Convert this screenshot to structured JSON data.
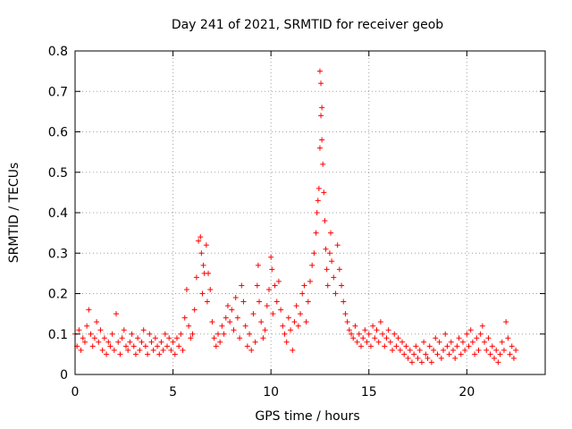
{
  "chart_data": {
    "type": "scatter",
    "title": "Day 241 of 2021, SRMTID for receiver geob",
    "xlabel": "GPS time / hours",
    "ylabel": "SRMTID / TECUs",
    "xlim": [
      0,
      24
    ],
    "ylim": [
      0,
      0.8
    ],
    "x_ticks": [
      0,
      5,
      10,
      15,
      20
    ],
    "x_tick_labels": [
      "0",
      "5",
      "10",
      "15",
      "20"
    ],
    "y_ticks": [
      0,
      0.1,
      0.2,
      0.3,
      0.4,
      0.5,
      0.6,
      0.7,
      0.8
    ],
    "y_tick_labels": [
      "0",
      "0.1",
      "0.2",
      "0.3",
      "0.4",
      "0.5",
      "0.6",
      "0.7",
      "0.8"
    ],
    "grid": true,
    "marker": "plus",
    "color": "#ff0000",
    "series": [
      {
        "name": "SRMTID",
        "points": [
          [
            0.0,
            0.1
          ],
          [
            0.1,
            0.07
          ],
          [
            0.2,
            0.11
          ],
          [
            0.3,
            0.06
          ],
          [
            0.4,
            0.09
          ],
          [
            0.5,
            0.08
          ],
          [
            0.6,
            0.12
          ],
          [
            0.7,
            0.16
          ],
          [
            0.8,
            0.1
          ],
          [
            0.9,
            0.07
          ],
          [
            1.0,
            0.09
          ],
          [
            1.1,
            0.13
          ],
          [
            1.2,
            0.08
          ],
          [
            1.3,
            0.11
          ],
          [
            1.4,
            0.06
          ],
          [
            1.5,
            0.09
          ],
          [
            1.6,
            0.05
          ],
          [
            1.7,
            0.08
          ],
          [
            1.8,
            0.07
          ],
          [
            1.9,
            0.1
          ],
          [
            2.0,
            0.06
          ],
          [
            2.1,
            0.15
          ],
          [
            2.2,
            0.08
          ],
          [
            2.3,
            0.05
          ],
          [
            2.4,
            0.09
          ],
          [
            2.5,
            0.11
          ],
          [
            2.6,
            0.07
          ],
          [
            2.7,
            0.06
          ],
          [
            2.8,
            0.08
          ],
          [
            2.9,
            0.1
          ],
          [
            3.0,
            0.07
          ],
          [
            3.1,
            0.05
          ],
          [
            3.2,
            0.09
          ],
          [
            3.3,
            0.06
          ],
          [
            3.4,
            0.08
          ],
          [
            3.5,
            0.11
          ],
          [
            3.6,
            0.07
          ],
          [
            3.7,
            0.05
          ],
          [
            3.8,
            0.1
          ],
          [
            3.9,
            0.08
          ],
          [
            4.0,
            0.06
          ],
          [
            4.1,
            0.09
          ],
          [
            4.2,
            0.07
          ],
          [
            4.3,
            0.05
          ],
          [
            4.4,
            0.08
          ],
          [
            4.5,
            0.06
          ],
          [
            4.6,
            0.1
          ],
          [
            4.7,
            0.07
          ],
          [
            4.8,
            0.09
          ],
          [
            4.9,
            0.06
          ],
          [
            5.0,
            0.08
          ],
          [
            5.1,
            0.05
          ],
          [
            5.2,
            0.09
          ],
          [
            5.3,
            0.07
          ],
          [
            5.4,
            0.1
          ],
          [
            5.5,
            0.06
          ],
          [
            5.6,
            0.14
          ],
          [
            5.7,
            0.21
          ],
          [
            5.8,
            0.12
          ],
          [
            5.9,
            0.09
          ],
          [
            6.0,
            0.1
          ],
          [
            6.1,
            0.16
          ],
          [
            6.2,
            0.24
          ],
          [
            6.3,
            0.33
          ],
          [
            6.4,
            0.34
          ],
          [
            6.45,
            0.3
          ],
          [
            6.5,
            0.2
          ],
          [
            6.55,
            0.27
          ],
          [
            6.6,
            0.25
          ],
          [
            6.7,
            0.32
          ],
          [
            6.75,
            0.18
          ],
          [
            6.8,
            0.25
          ],
          [
            6.9,
            0.21
          ],
          [
            7.0,
            0.13
          ],
          [
            7.1,
            0.09
          ],
          [
            7.2,
            0.07
          ],
          [
            7.3,
            0.1
          ],
          [
            7.4,
            0.08
          ],
          [
            7.5,
            0.12
          ],
          [
            7.6,
            0.1
          ],
          [
            7.7,
            0.14
          ],
          [
            7.8,
            0.17
          ],
          [
            7.9,
            0.13
          ],
          [
            8.0,
            0.16
          ],
          [
            8.1,
            0.11
          ],
          [
            8.2,
            0.19
          ],
          [
            8.3,
            0.14
          ],
          [
            8.4,
            0.09
          ],
          [
            8.5,
            0.22
          ],
          [
            8.6,
            0.18
          ],
          [
            8.7,
            0.12
          ],
          [
            8.8,
            0.07
          ],
          [
            8.9,
            0.1
          ],
          [
            9.0,
            0.06
          ],
          [
            9.1,
            0.15
          ],
          [
            9.2,
            0.08
          ],
          [
            9.3,
            0.22
          ],
          [
            9.35,
            0.27
          ],
          [
            9.4,
            0.18
          ],
          [
            9.5,
            0.13
          ],
          [
            9.6,
            0.09
          ],
          [
            9.7,
            0.11
          ],
          [
            9.8,
            0.17
          ],
          [
            9.9,
            0.21
          ],
          [
            10.0,
            0.29
          ],
          [
            10.05,
            0.26
          ],
          [
            10.1,
            0.15
          ],
          [
            10.2,
            0.22
          ],
          [
            10.3,
            0.18
          ],
          [
            10.4,
            0.23
          ],
          [
            10.5,
            0.16
          ],
          [
            10.6,
            0.12
          ],
          [
            10.7,
            0.1
          ],
          [
            10.8,
            0.08
          ],
          [
            10.9,
            0.14
          ],
          [
            11.0,
            0.11
          ],
          [
            11.1,
            0.06
          ],
          [
            11.2,
            0.13
          ],
          [
            11.3,
            0.17
          ],
          [
            11.4,
            0.12
          ],
          [
            11.5,
            0.15
          ],
          [
            11.6,
            0.2
          ],
          [
            11.7,
            0.22
          ],
          [
            11.8,
            0.13
          ],
          [
            11.9,
            0.18
          ],
          [
            12.0,
            0.23
          ],
          [
            12.1,
            0.27
          ],
          [
            12.2,
            0.3
          ],
          [
            12.3,
            0.35
          ],
          [
            12.35,
            0.4
          ],
          [
            12.4,
            0.43
          ],
          [
            12.45,
            0.46
          ],
          [
            12.5,
            0.56
          ],
          [
            12.55,
            0.64
          ],
          [
            12.6,
            0.58
          ],
          [
            12.65,
            0.52
          ],
          [
            12.5,
            0.75
          ],
          [
            12.55,
            0.72
          ],
          [
            12.6,
            0.66
          ],
          [
            12.7,
            0.45
          ],
          [
            12.75,
            0.38
          ],
          [
            12.8,
            0.31
          ],
          [
            12.85,
            0.26
          ],
          [
            12.9,
            0.22
          ],
          [
            13.0,
            0.3
          ],
          [
            13.05,
            0.35
          ],
          [
            13.1,
            0.28
          ],
          [
            13.2,
            0.24
          ],
          [
            13.3,
            0.2
          ],
          [
            13.4,
            0.32
          ],
          [
            13.5,
            0.26
          ],
          [
            13.6,
            0.22
          ],
          [
            13.7,
            0.18
          ],
          [
            13.8,
            0.15
          ],
          [
            13.9,
            0.13
          ],
          [
            14.0,
            0.11
          ],
          [
            14.1,
            0.1
          ],
          [
            14.2,
            0.09
          ],
          [
            14.3,
            0.12
          ],
          [
            14.4,
            0.08
          ],
          [
            14.5,
            0.1
          ],
          [
            14.6,
            0.07
          ],
          [
            14.7,
            0.09
          ],
          [
            14.8,
            0.11
          ],
          [
            14.9,
            0.08
          ],
          [
            15.0,
            0.1
          ],
          [
            15.1,
            0.07
          ],
          [
            15.2,
            0.12
          ],
          [
            15.3,
            0.09
          ],
          [
            15.4,
            0.11
          ],
          [
            15.5,
            0.08
          ],
          [
            15.6,
            0.13
          ],
          [
            15.7,
            0.1
          ],
          [
            15.8,
            0.07
          ],
          [
            15.9,
            0.09
          ],
          [
            16.0,
            0.11
          ],
          [
            16.1,
            0.08
          ],
          [
            16.2,
            0.06
          ],
          [
            16.3,
            0.1
          ],
          [
            16.4,
            0.07
          ],
          [
            16.5,
            0.09
          ],
          [
            16.6,
            0.06
          ],
          [
            16.7,
            0.08
          ],
          [
            16.8,
            0.05
          ],
          [
            16.9,
            0.07
          ],
          [
            17.0,
            0.04
          ],
          [
            17.1,
            0.06
          ],
          [
            17.2,
            0.03
          ],
          [
            17.3,
            0.05
          ],
          [
            17.4,
            0.07
          ],
          [
            17.5,
            0.04
          ],
          [
            17.6,
            0.06
          ],
          [
            17.7,
            0.03
          ],
          [
            17.8,
            0.08
          ],
          [
            17.9,
            0.05
          ],
          [
            18.0,
            0.04
          ],
          [
            18.1,
            0.07
          ],
          [
            18.2,
            0.03
          ],
          [
            18.3,
            0.06
          ],
          [
            18.4,
            0.09
          ],
          [
            18.5,
            0.05
          ],
          [
            18.6,
            0.08
          ],
          [
            18.7,
            0.04
          ],
          [
            18.8,
            0.06
          ],
          [
            18.9,
            0.1
          ],
          [
            19.0,
            0.07
          ],
          [
            19.1,
            0.05
          ],
          [
            19.2,
            0.08
          ],
          [
            19.3,
            0.06
          ],
          [
            19.4,
            0.04
          ],
          [
            19.5,
            0.07
          ],
          [
            19.6,
            0.09
          ],
          [
            19.7,
            0.05
          ],
          [
            19.8,
            0.08
          ],
          [
            19.9,
            0.06
          ],
          [
            20.0,
            0.1
          ],
          [
            20.1,
            0.07
          ],
          [
            20.2,
            0.11
          ],
          [
            20.3,
            0.08
          ],
          [
            20.4,
            0.05
          ],
          [
            20.5,
            0.09
          ],
          [
            20.6,
            0.06
          ],
          [
            20.7,
            0.1
          ],
          [
            20.8,
            0.12
          ],
          [
            20.9,
            0.08
          ],
          [
            21.0,
            0.06
          ],
          [
            21.1,
            0.09
          ],
          [
            21.2,
            0.05
          ],
          [
            21.3,
            0.07
          ],
          [
            21.4,
            0.04
          ],
          [
            21.5,
            0.06
          ],
          [
            21.6,
            0.03
          ],
          [
            21.7,
            0.05
          ],
          [
            21.8,
            0.08
          ],
          [
            21.9,
            0.06
          ],
          [
            22.0,
            0.13
          ],
          [
            22.1,
            0.09
          ],
          [
            22.2,
            0.05
          ],
          [
            22.3,
            0.07
          ],
          [
            22.4,
            0.04
          ],
          [
            22.5,
            0.06
          ]
        ]
      }
    ]
  }
}
